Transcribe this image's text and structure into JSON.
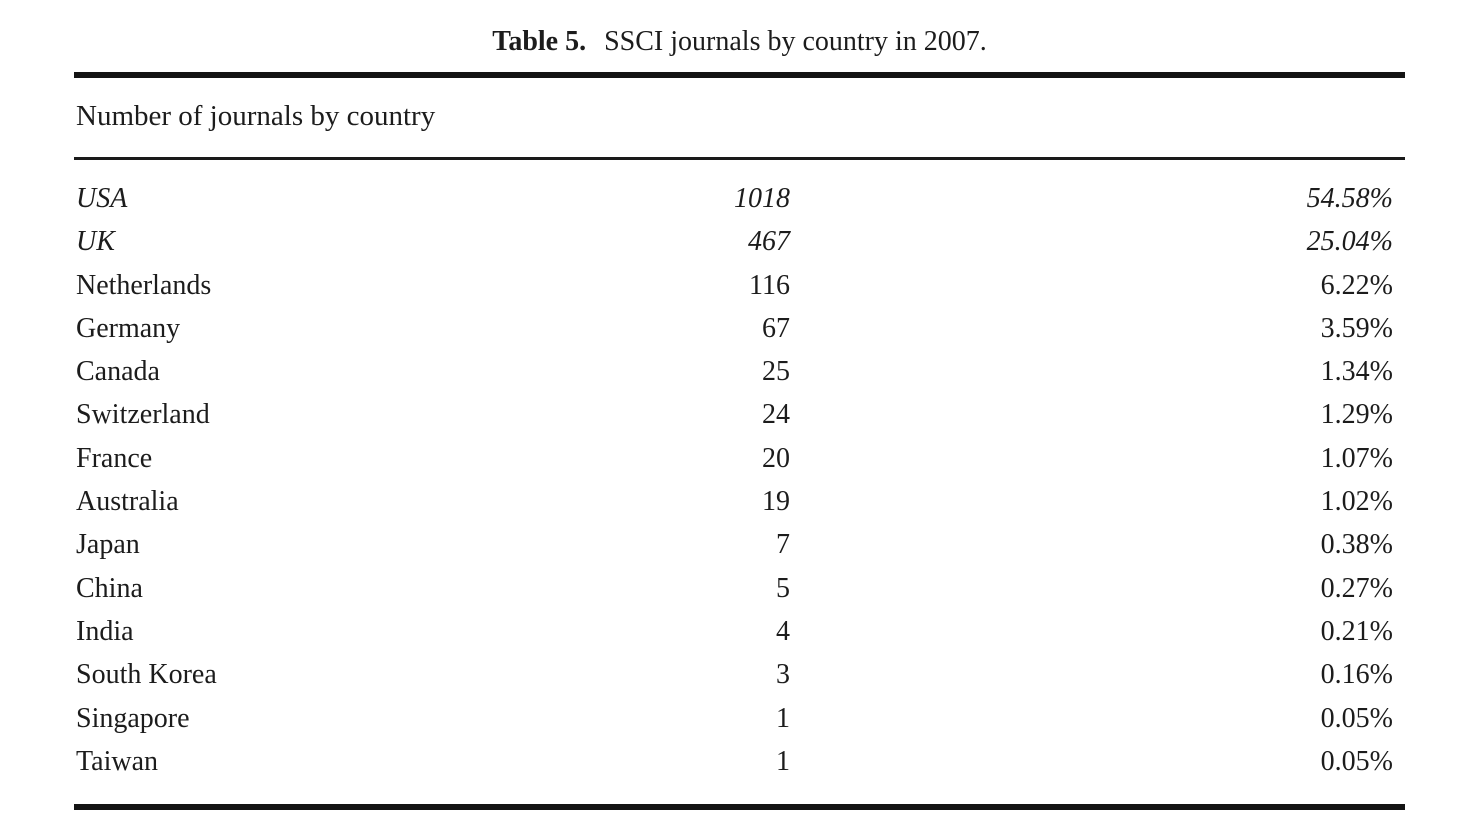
{
  "table": {
    "caption_label": "Table 5.",
    "caption_text": "SSCI journals by country in 2007.",
    "subheader": "Number of journals by country",
    "columns": [
      "country",
      "journal_count",
      "percentage"
    ],
    "rows": [
      {
        "country": "USA",
        "count": "1018",
        "pct": "54.58%",
        "italic": true
      },
      {
        "country": "UK",
        "count": "467",
        "pct": "25.04%",
        "italic": true
      },
      {
        "country": "Netherlands",
        "count": "116",
        "pct": "6.22%",
        "italic": false
      },
      {
        "country": "Germany",
        "count": "67",
        "pct": "3.59%",
        "italic": false
      },
      {
        "country": "Canada",
        "count": "25",
        "pct": "1.34%",
        "italic": false
      },
      {
        "country": "Switzerland",
        "count": "24",
        "pct": "1.29%",
        "italic": false
      },
      {
        "country": "France",
        "count": "20",
        "pct": "1.07%",
        "italic": false
      },
      {
        "country": "Australia",
        "count": "19",
        "pct": "1.02%",
        "italic": false
      },
      {
        "country": "Japan",
        "count": "7",
        "pct": "0.38%",
        "italic": false
      },
      {
        "country": "China",
        "count": "5",
        "pct": "0.27%",
        "italic": false
      },
      {
        "country": "India",
        "count": "4",
        "pct": "0.21%",
        "italic": false
      },
      {
        "country": "South Korea",
        "count": "3",
        "pct": "0.16%",
        "italic": false
      },
      {
        "country": "Singapore",
        "count": "1",
        "pct": "0.05%",
        "italic": false
      },
      {
        "country": "Taiwan",
        "count": "1",
        "pct": "0.05%",
        "italic": false
      }
    ],
    "colors": {
      "text": "#1c1c1c",
      "rule": "#141414",
      "background": "#ffffff"
    }
  },
  "chart_data": {
    "type": "table",
    "title": "Table 5. SSCI journals by country in 2007.",
    "subtitle": "Number of journals by country",
    "categories": [
      "USA",
      "UK",
      "Netherlands",
      "Germany",
      "Canada",
      "Switzerland",
      "France",
      "Australia",
      "Japan",
      "China",
      "India",
      "South Korea",
      "Singapore",
      "Taiwan"
    ],
    "series": [
      {
        "name": "journal_count",
        "values": [
          1018,
          467,
          116,
          67,
          25,
          24,
          20,
          19,
          7,
          5,
          4,
          3,
          1,
          1
        ]
      },
      {
        "name": "percentage",
        "values": [
          54.58,
          25.04,
          6.22,
          3.59,
          1.34,
          1.29,
          1.07,
          1.02,
          0.38,
          0.27,
          0.21,
          0.16,
          0.05,
          0.05
        ]
      }
    ]
  }
}
